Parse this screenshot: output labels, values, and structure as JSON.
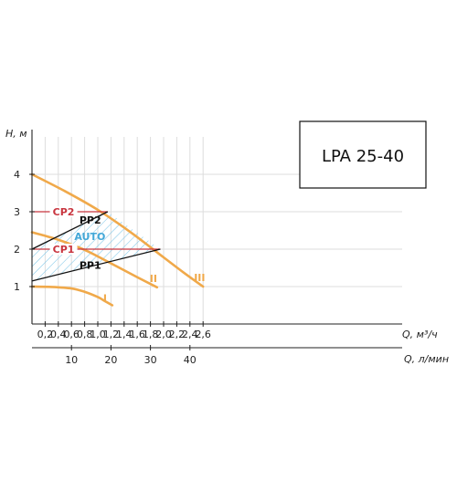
{
  "chart_data": {
    "type": "line",
    "title": "LPA 25-40",
    "ylabel": "H, м",
    "xlabel": "Q, м³/ч",
    "x2label": "Q, л/мин",
    "xlim": [
      0,
      2.8
    ],
    "ylim": [
      0,
      4.5
    ],
    "x_ticks": [
      0.2,
      0.4,
      0.6,
      0.8,
      1.0,
      1.2,
      1.4,
      1.6,
      1.8,
      2.0,
      2.2,
      2.4,
      2.6
    ],
    "x_tick_labels": [
      "0,2",
      "0,4",
      "0,6",
      "0,8",
      "1,0",
      "1,2",
      "1,4",
      "1,6",
      "1,8",
      "2,0",
      "2,2",
      "2,4",
      "2,6"
    ],
    "y_ticks": [
      1,
      2,
      3,
      4
    ],
    "y_tick_labels": [
      "1",
      "2",
      "3",
      "4"
    ],
    "x2_ticks": [
      10,
      20,
      30,
      40
    ],
    "x2_tick_labels": [
      "10",
      "20",
      "30",
      "40"
    ],
    "grid": true,
    "colors": {
      "speed_curve": "#f0a94a",
      "cp_line": "#c8353f",
      "pp_line": "#111111",
      "auto_hatch": "#7fc6e8",
      "auto_label": "#43a8d8",
      "grid": "#dddddd"
    },
    "series": [
      {
        "name": "I",
        "color": "#f0a94a",
        "x": [
          0,
          0.3,
          0.6,
          0.8,
          1.0,
          1.1,
          1.22
        ],
        "y": [
          1.0,
          0.99,
          0.95,
          0.86,
          0.72,
          0.62,
          0.5
        ]
      },
      {
        "name": "II",
        "color": "#f0a94a",
        "x": [
          0,
          0.4,
          0.8,
          1.2,
          1.6,
          1.9
        ],
        "y": [
          2.45,
          2.25,
          1.98,
          1.62,
          1.25,
          0.98
        ]
      },
      {
        "name": "III",
        "color": "#f0a94a",
        "x": [
          0,
          0.5,
          1.0,
          1.5,
          2.0,
          2.3,
          2.6
        ],
        "y": [
          4.0,
          3.55,
          3.05,
          2.45,
          1.78,
          1.38,
          1.0
        ]
      }
    ],
    "control_lines": [
      {
        "name": "CP2",
        "color": "#c8353f",
        "x": [
          0,
          1.15
        ],
        "y": [
          3.0,
          3.0
        ]
      },
      {
        "name": "CP1",
        "color": "#c8353f",
        "x": [
          0,
          1.95
        ],
        "y": [
          2.0,
          2.0
        ]
      },
      {
        "name": "PP2",
        "color": "#111111",
        "x": [
          0,
          1.15
        ],
        "y": [
          2.0,
          3.0
        ]
      },
      {
        "name": "PP1",
        "color": "#111111",
        "x": [
          0,
          1.95
        ],
        "y": [
          1.15,
          2.0
        ]
      }
    ],
    "auto_region": {
      "label": "AUTO",
      "polygon": [
        [
          0,
          1.15
        ],
        [
          1.95,
          2.0
        ],
        [
          1.15,
          3.0
        ],
        [
          0,
          2.0
        ]
      ]
    }
  }
}
